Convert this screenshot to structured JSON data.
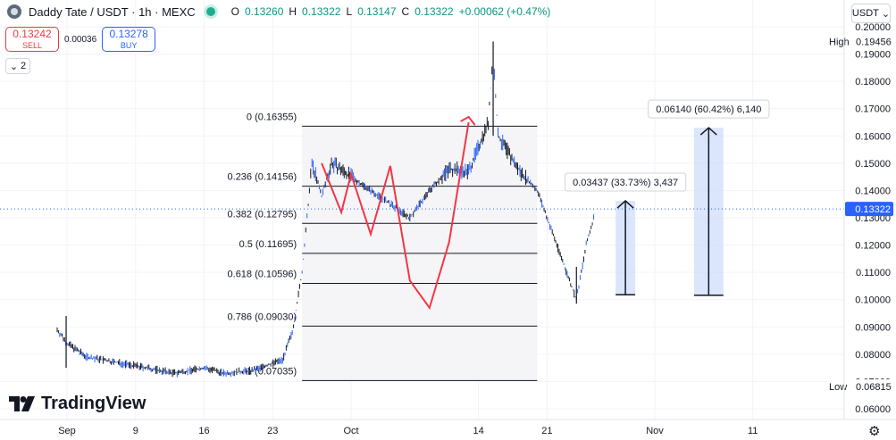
{
  "header": {
    "title": "Daddy Tate / USDT · 1h · MEXC",
    "ohlc": [
      {
        "key": "O",
        "value": "0.13260"
      },
      {
        "key": "H",
        "value": "0.13322"
      },
      {
        "key": "L",
        "value": "0.13147"
      },
      {
        "key": "C",
        "value": "0.13322"
      }
    ],
    "change": "+0.00062 (+0.47%)",
    "change_color": "#089981"
  },
  "trade": {
    "sell_price": "0.13242",
    "sell_label": "SELL",
    "spread": "0.00036",
    "buy_price": "0.13278",
    "buy_label": "BUY"
  },
  "indicators_toggle": "2",
  "currency_selector": "USDT",
  "brand": "TradingView",
  "colors": {
    "up": "#089981",
    "candle": "#131722",
    "wick_blue": "#2962ff",
    "projection": "#f23645",
    "measure_fill": "#cfdcf9",
    "accent": "#2962ff"
  },
  "chart_data": {
    "type": "candlestick",
    "title": "",
    "xlabel": "",
    "ylabel": "",
    "y_ticks": [
      "0.20000",
      "0.19000",
      "0.18000",
      "0.17000",
      "0.16000",
      "0.15000",
      "0.14000",
      "0.13000",
      "0.12000",
      "0.11000",
      "0.10000",
      "0.09000",
      "0.08000",
      "0.07000",
      "0.06000"
    ],
    "x_ticks": [
      "Sep",
      "9",
      "16",
      "23",
      "Oct",
      "14",
      "21",
      "Nov",
      "11"
    ],
    "last_price": "0.13322",
    "high": {
      "label": "High",
      "value": "0.19456"
    },
    "low": {
      "label": "Low",
      "value": "0.06815"
    },
    "price_path": [
      {
        "date": "2024-09-01",
        "price": 0.089
      },
      {
        "date": "2024-09-02",
        "price": 0.084
      },
      {
        "date": "2024-09-04",
        "price": 0.079
      },
      {
        "date": "2024-09-07",
        "price": 0.077
      },
      {
        "date": "2024-09-10",
        "price": 0.075
      },
      {
        "date": "2024-09-13",
        "price": 0.073
      },
      {
        "date": "2024-09-16",
        "price": 0.075
      },
      {
        "date": "2024-09-18",
        "price": 0.073
      },
      {
        "date": "2024-09-21",
        "price": 0.074
      },
      {
        "date": "2024-09-24",
        "price": 0.078
      },
      {
        "date": "2024-09-25",
        "price": 0.088
      },
      {
        "date": "2024-09-26",
        "price": 0.11
      },
      {
        "date": "2024-09-27",
        "price": 0.15
      },
      {
        "date": "2024-09-28",
        "price": 0.138
      },
      {
        "date": "2024-09-29",
        "price": 0.15
      },
      {
        "date": "2024-10-01",
        "price": 0.145
      },
      {
        "date": "2024-10-03",
        "price": 0.14
      },
      {
        "date": "2024-10-05",
        "price": 0.135
      },
      {
        "date": "2024-10-07",
        "price": 0.13
      },
      {
        "date": "2024-10-09",
        "price": 0.14
      },
      {
        "date": "2024-10-11",
        "price": 0.148
      },
      {
        "date": "2024-10-13",
        "price": 0.147
      },
      {
        "date": "2024-10-15",
        "price": 0.165
      },
      {
        "date": "2024-10-15T12:00",
        "price": 0.19
      },
      {
        "date": "2024-10-16",
        "price": 0.16
      },
      {
        "date": "2024-10-18",
        "price": 0.148
      },
      {
        "date": "2024-10-20",
        "price": 0.14
      },
      {
        "date": "2024-10-22",
        "price": 0.12
      },
      {
        "date": "2024-10-24",
        "price": 0.1
      },
      {
        "date": "2024-10-25",
        "price": 0.12
      },
      {
        "date": "2024-10-26",
        "price": 0.1332
      }
    ],
    "fibonacci": [
      {
        "label": "0 (0.16355)",
        "price": 0.16355
      },
      {
        "label": "0.236 (0.14156)",
        "price": 0.14156
      },
      {
        "label": "0.382 (0.12795)",
        "price": 0.12795
      },
      {
        "label": "0.5 (0.11695)",
        "price": 0.11695
      },
      {
        "label": "0.618 (0.10596)",
        "price": 0.10596
      },
      {
        "label": "0.786 (0.09030)",
        "price": 0.0903
      },
      {
        "label": "1 (0.07035)",
        "price": 0.07035
      }
    ],
    "projection_path": [
      {
        "date": "2024-09-28",
        "price": 0.15
      },
      {
        "date": "2024-09-30",
        "price": 0.132
      },
      {
        "date": "2024-10-01",
        "price": 0.146
      },
      {
        "date": "2024-10-03",
        "price": 0.124
      },
      {
        "date": "2024-10-05",
        "price": 0.149
      },
      {
        "date": "2024-10-07",
        "price": 0.107
      },
      {
        "date": "2024-10-09",
        "price": 0.097
      },
      {
        "date": "2024-10-11",
        "price": 0.121
      },
      {
        "date": "2024-10-13",
        "price": 0.165
      }
    ],
    "measurements": [
      {
        "label": "0.03437 (33.73%) 3,437",
        "from_price": 0.1018,
        "to_price": 0.1362,
        "date_start": "2024-10-28",
        "date_end": "2024-10-30"
      },
      {
        "label": "0.06140 (60.42%) 6,140",
        "from_price": 0.1016,
        "to_price": 0.163,
        "date_start": "2024-11-05",
        "date_end": "2024-11-08"
      }
    ]
  }
}
